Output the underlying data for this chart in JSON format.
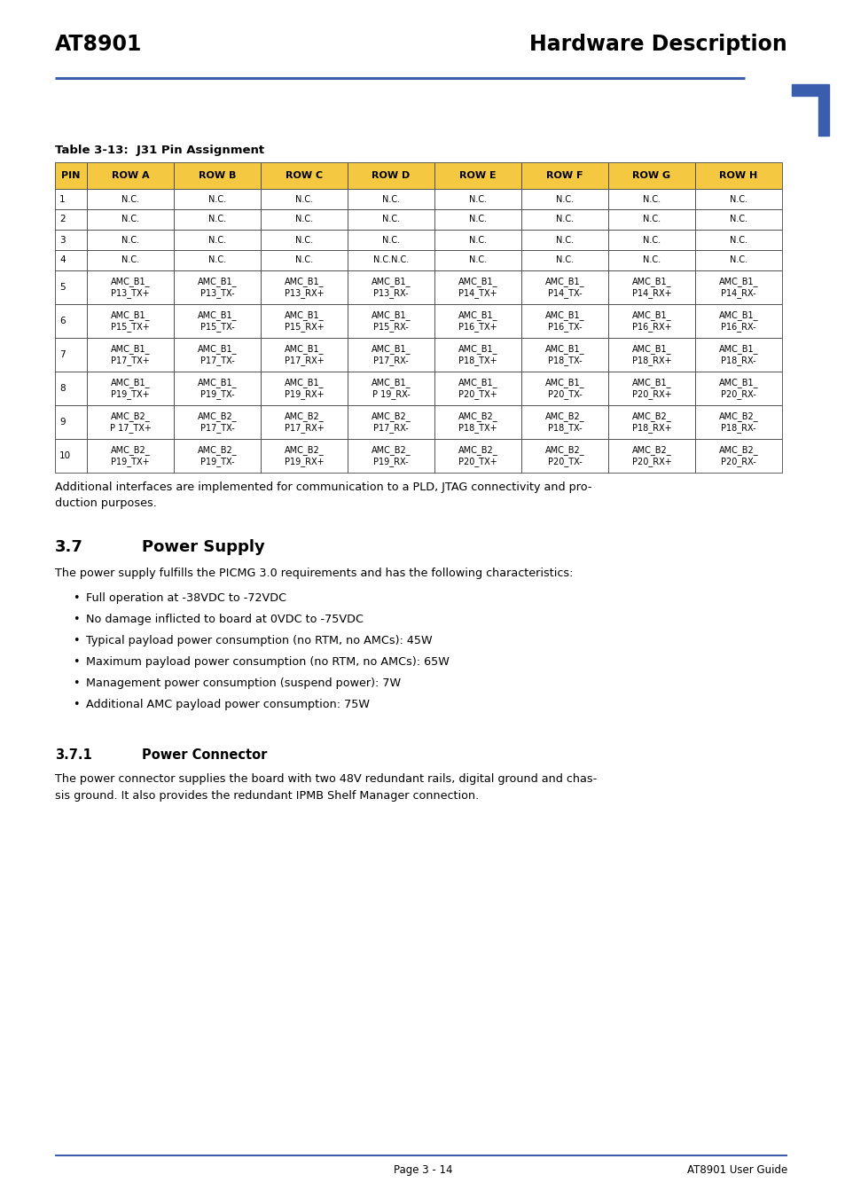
{
  "header_left": "AT8901",
  "header_right": "Hardware Description",
  "header_line_color": "#3a5dae",
  "corner_mark_color": "#3a5dae",
  "table_title": "Table 3-13:  J31 Pin Assignment",
  "table_header_bg": "#f5c842",
  "table_row_bg_white": "#ffffff",
  "table_border_color": "#444444",
  "col_headers": [
    "PIN",
    "ROW A",
    "ROW B",
    "ROW C",
    "ROW D",
    "ROW E",
    "ROW F",
    "ROW G",
    "ROW H"
  ],
  "rows": [
    [
      "1",
      "N.C.",
      "N.C.",
      "N.C.",
      "N.C.",
      "N.C.",
      "N.C.",
      "N.C.",
      "N.C."
    ],
    [
      "2",
      "N.C.",
      "N.C.",
      "N.C.",
      "N.C.",
      "N.C.",
      "N.C.",
      "N.C.",
      "N.C."
    ],
    [
      "3",
      "N.C.",
      "N.C.",
      "N.C.",
      "N.C.",
      "N.C.",
      "N.C.",
      "N.C.",
      "N.C."
    ],
    [
      "4",
      "N.C.",
      "N.C.",
      "N.C.",
      "N.C.N.C.",
      "N.C.",
      "N.C.",
      "N.C.",
      "N.C."
    ],
    [
      "5",
      "AMC_B1_\nP13_TX+",
      "AMC_B1_\nP13_TX-",
      "AMC_B1_\nP13_RX+",
      "AMC_B1_\nP13_RX-",
      "AMC_B1_\nP14_TX+",
      "AMC_B1_\nP14_TX-",
      "AMC_B1_\nP14_RX+",
      "AMC_B1_\nP14_RX-"
    ],
    [
      "6",
      "AMC_B1_\nP15_TX+",
      "AMC_B1_\nP15_TX-",
      "AMC_B1_\nP15_RX+",
      "AMC_B1_\nP15_RX-",
      "AMC_B1_\nP16_TX+",
      "AMC_B1_\nP16_TX-",
      "AMC_B1_\nP16_RX+",
      "AMC_B1_\nP16_RX-"
    ],
    [
      "7",
      "AMC_B1_\nP17_TX+",
      "AMC_B1_\nP17_TX-",
      "AMC_B1_\nP17_RX+",
      "AMC_B1_\nP17_RX-",
      "AMC_B1_\nP18_TX+",
      "AMC_B1_\nP18_TX-",
      "AMC_B1_\nP18_RX+",
      "AMC_B1_\nP18_RX-"
    ],
    [
      "8",
      "AMC_B1_\nP19_TX+",
      "AMC_B1_\nP19_TX-",
      "AMC_B1_\nP19_RX+",
      "AMC_B1_\nP 19_RX-",
      "AMC_B1_\nP20_TX+",
      "AMC_B1_\nP20_TX-",
      "AMC_B1_\nP20_RX+",
      "AMC_B1_\nP20_RX-"
    ],
    [
      "9",
      "AMC_B2_\nP 17_TX+",
      "AMC_B2_\nP17_TX-",
      "AMC_B2_\nP17_RX+",
      "AMC_B2_\nP17_RX-",
      "AMC_B2_\nP18_TX+",
      "AMC_B2_\nP18_TX-",
      "AMC_B2_\nP18_RX+",
      "AMC_B2_\nP18_RX-"
    ],
    [
      "10",
      "AMC_B2_\nP19_TX+",
      "AMC_B2_\nP19_TX-",
      "AMC_B2_\nP19_RX+",
      "AMC_B2_\nP19_RX-",
      "AMC_B2_\nP20_TX+",
      "AMC_B2_\nP20_TX-",
      "AMC_B2_\nP20_RX+",
      "AMC_B2_\nP20_RX-"
    ]
  ],
  "additional_text": "Additional interfaces are implemented for communication to a PLD, JTAG connectivity and pro-\nduction purposes.",
  "section_37_num": "3.7",
  "section_37_name": "Power Supply",
  "section_37_intro": "The power supply fulfills the PICMG 3.0 requirements and has the following characteristics:",
  "section_37_bullets": [
    "Full operation at -38VDC to -72VDC",
    "No damage inflicted to board at 0VDC to -75VDC",
    "Typical payload power consumption (no RTM, no AMCs): 45W",
    "Maximum payload power consumption (no RTM, no AMCs): 65W",
    "Management power consumption (suspend power): 7W",
    "Additional AMC payload power consumption: 75W"
  ],
  "section_371_num": "3.7.1",
  "section_371_name": "Power Connector",
  "section_371_text": "The power connector supplies the board with two 48V redundant rails, digital ground and chas-\nsis ground. It also provides the redundant IPMB Shelf Manager connection.",
  "footer_line_color": "#3a5dae",
  "footer_center": "Page 3 - 14",
  "footer_right": "AT8901 User Guide",
  "bg_color": "#ffffff"
}
